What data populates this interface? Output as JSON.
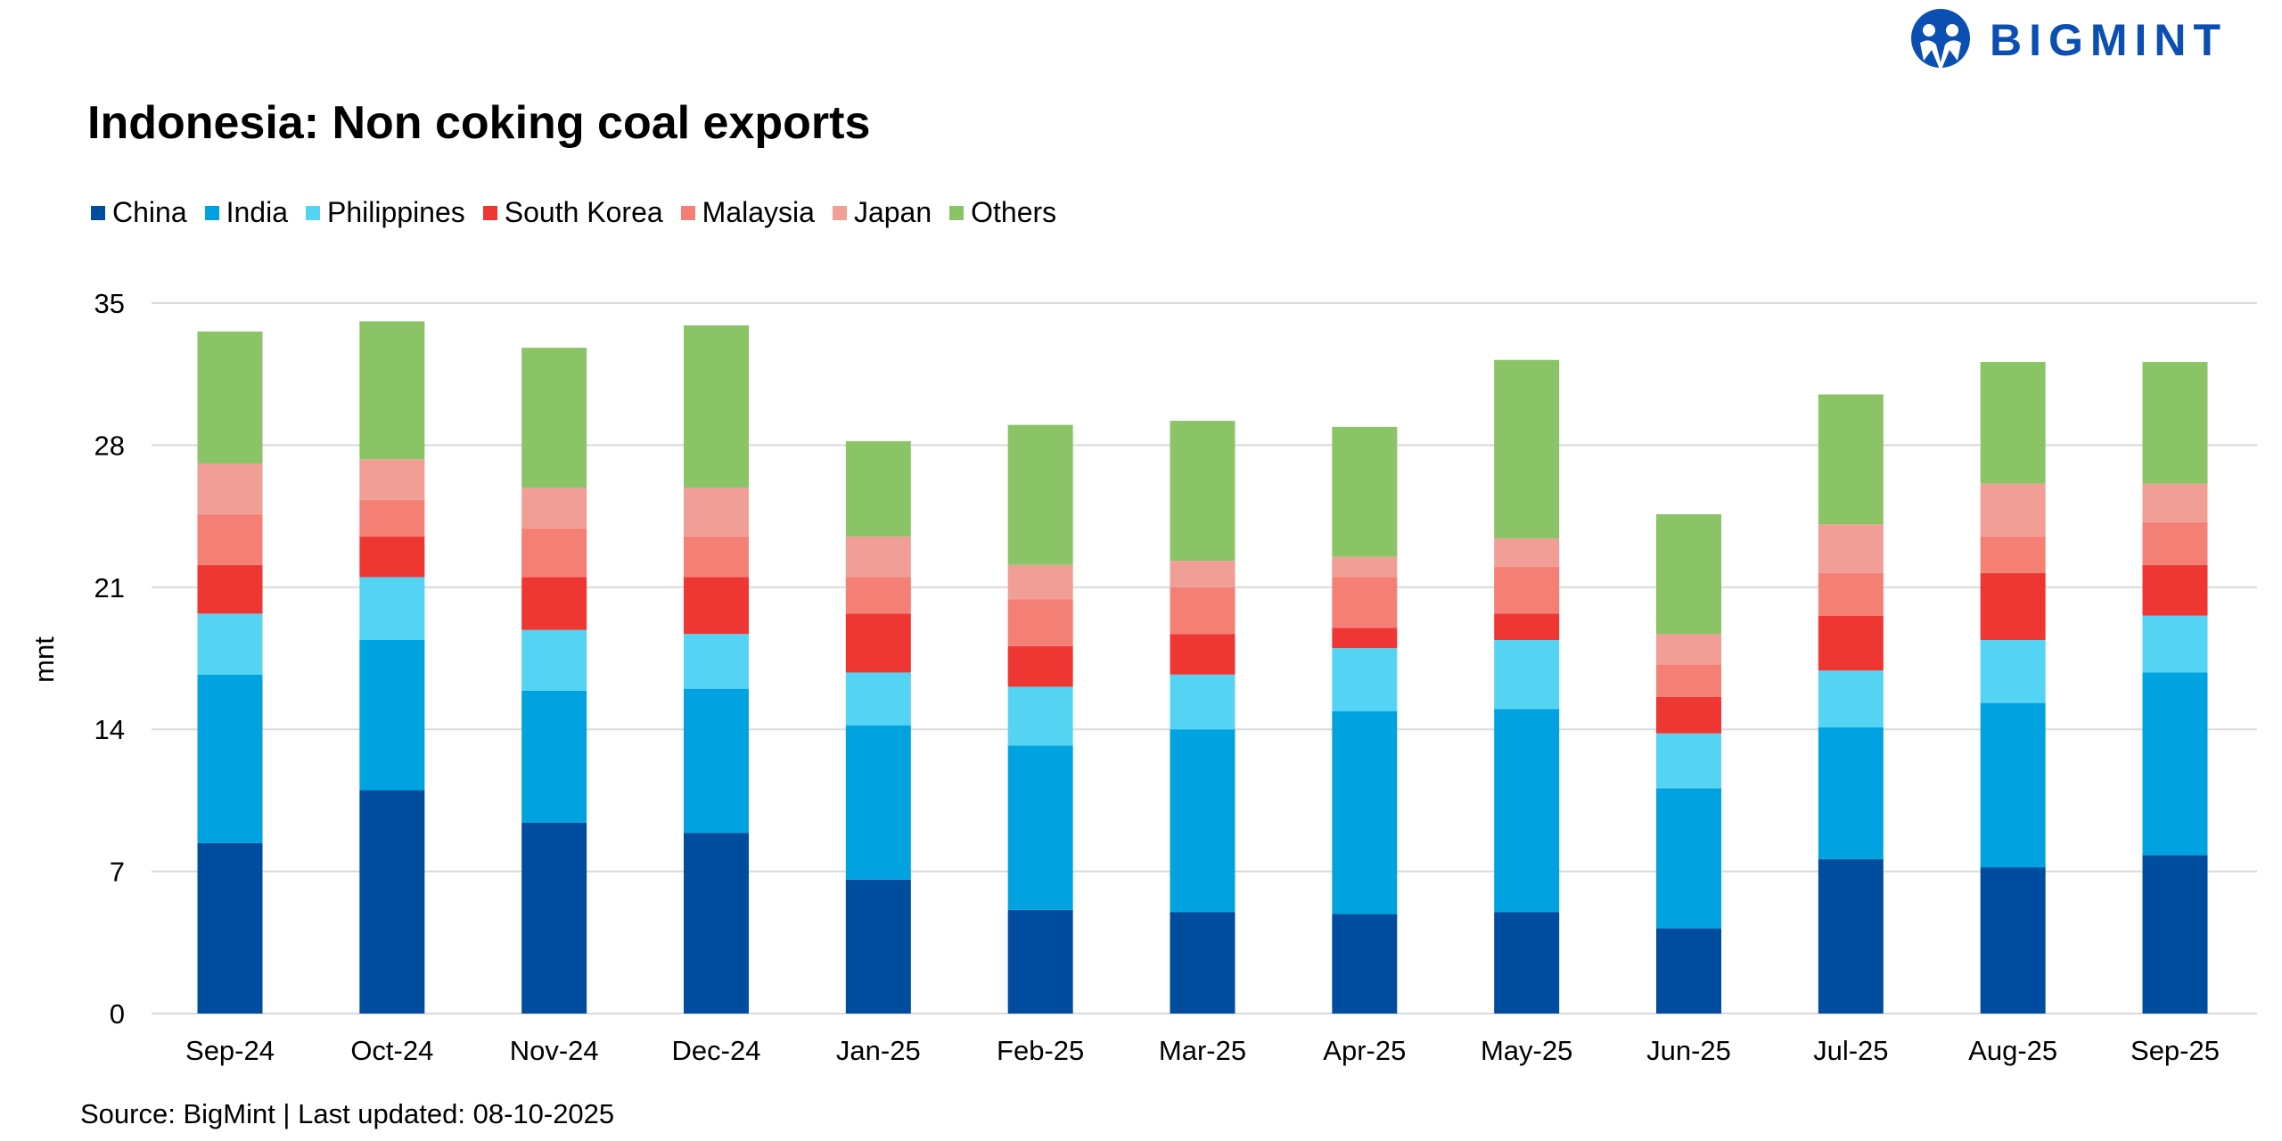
{
  "logo": {
    "text": "BIGMINT",
    "color": "#0b4fb3"
  },
  "footer": {
    "source": "Source: BigMint | Last updated: 08-10-2025"
  },
  "chart_data": {
    "type": "bar",
    "stacked": true,
    "title": "Indonesia: Non coking coal exports",
    "xlabel": "",
    "ylabel": "mnt",
    "ylim": [
      0,
      35
    ],
    "yticks": [
      0,
      7,
      14,
      21,
      28,
      35
    ],
    "grid": true,
    "legend": "top-left",
    "categories": [
      "Sep-24",
      "Oct-24",
      "Nov-24",
      "Dec-24",
      "Jan-25",
      "Feb-25",
      "Mar-25",
      "Apr-25",
      "May-25",
      "Jun-25",
      "Jul-25",
      "Aug-25",
      "Sep-25"
    ],
    "series": [
      {
        "name": "China",
        "color": "#004c9f",
        "values": [
          8.4,
          11.0,
          9.4,
          8.9,
          6.6,
          5.1,
          5.0,
          4.9,
          5.0,
          4.2,
          7.6,
          7.2,
          7.8
        ]
      },
      {
        "name": "India",
        "color": "#00a3e0",
        "values": [
          8.3,
          7.4,
          6.5,
          7.1,
          7.6,
          8.1,
          9.0,
          10.0,
          10.0,
          6.9,
          6.5,
          8.1,
          9.0
        ]
      },
      {
        "name": "Philippines",
        "color": "#55d3f2",
        "values": [
          3.0,
          3.1,
          3.0,
          2.7,
          2.6,
          2.9,
          2.7,
          3.1,
          3.4,
          2.7,
          2.8,
          3.1,
          2.8
        ]
      },
      {
        "name": "South Korea",
        "color": "#ee3733",
        "values": [
          2.4,
          2.0,
          2.6,
          2.8,
          2.9,
          2.0,
          2.0,
          1.0,
          1.3,
          1.8,
          2.7,
          3.3,
          2.5
        ]
      },
      {
        "name": "Malaysia",
        "color": "#f47f74",
        "values": [
          2.5,
          1.8,
          2.4,
          2.0,
          1.8,
          2.3,
          2.3,
          2.5,
          2.3,
          1.6,
          2.1,
          1.8,
          2.1
        ]
      },
      {
        "name": "Japan",
        "color": "#f09e96",
        "values": [
          2.5,
          2.0,
          2.0,
          2.4,
          2.0,
          1.7,
          1.3,
          1.0,
          1.4,
          1.5,
          2.4,
          2.6,
          1.9
        ]
      },
      {
        "name": "Others",
        "color": "#8ac466",
        "values": [
          6.5,
          6.8,
          6.9,
          8.0,
          4.7,
          6.9,
          6.9,
          6.4,
          8.8,
          5.9,
          6.4,
          6.0,
          6.0
        ]
      }
    ]
  }
}
